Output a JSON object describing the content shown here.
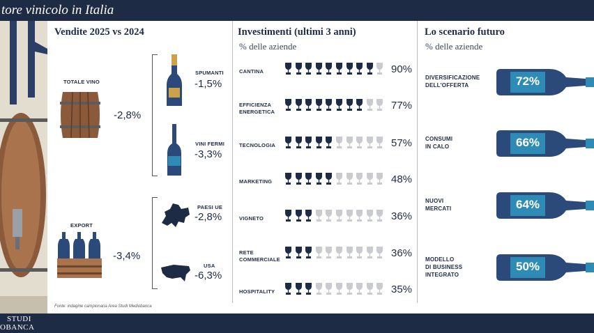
{
  "title": "tore vinicolo in Italia",
  "brand_line1": "STUDI",
  "brand_line2": "OBANCA",
  "colors": {
    "navy": "#1e2b45",
    "blue": "#2b4a7a",
    "teal": "#2e8bb5",
    "wood": "#8a5a3a",
    "grey": "#c9cbd0"
  },
  "sales": {
    "title": "Vendite 2025 vs 2024",
    "total_label": "TOTALE VINO",
    "total_value": "-2,8%",
    "spumanti_label": "SPUMANTI",
    "spumanti_value": "-1,5%",
    "fermi_label": "VINI FERMI",
    "fermi_value": "-3,3%",
    "export_label": "EXPORT",
    "export_value": "-3,4%",
    "ue_label": "PAESI UE",
    "ue_value": "-2,8%",
    "usa_label": "USA",
    "usa_value": "-6,3%"
  },
  "investments": {
    "title": "Investimenti (ultimi 3 anni)",
    "subtitle": "% delle aziende",
    "rows": [
      {
        "label1": "CANTINA",
        "label2": "",
        "value": "90%",
        "share": 0.9
      },
      {
        "label1": "EFFICIENZA",
        "label2": "ENERGETICA",
        "value": "77%",
        "share": 0.77
      },
      {
        "label1": "TECNOLOGIA",
        "label2": "",
        "value": "57%",
        "share": 0.57
      },
      {
        "label1": "MARKETING",
        "label2": "",
        "value": "48%",
        "share": 0.48
      },
      {
        "label1": "VIGNETO",
        "label2": "",
        "value": "36%",
        "share": 0.36
      },
      {
        "label1": "RETE",
        "label2": "COMMERCIALE",
        "value": "36%",
        "share": 0.36
      },
      {
        "label1": "HOSPITALITY",
        "label2": "",
        "value": "35%",
        "share": 0.35
      }
    ]
  },
  "future": {
    "title": "Lo scenario futuro",
    "subtitle": "% delle aziende",
    "items": [
      {
        "label1": "DIVERSIFICAZIONE",
        "label2": "DELL'OFFERTA",
        "label3": "",
        "value": "72%"
      },
      {
        "label1": "CONSUMI",
        "label2": "IN CALO",
        "label3": "",
        "value": "66%"
      },
      {
        "label1": "NUOVI",
        "label2": "MERCATI",
        "label3": "",
        "value": "64%"
      },
      {
        "label1": "MODELLO",
        "label2": "DI BUSINESS",
        "label3": "INTEGRATO",
        "value": "50%"
      }
    ]
  },
  "footnote": "Fonte: indagine campionaria Area Studi Mediobanca"
}
